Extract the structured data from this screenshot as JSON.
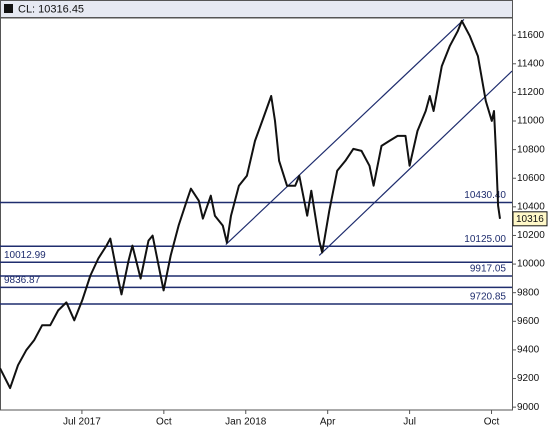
{
  "chart_data": {
    "type": "line",
    "title": "CL: 10316.45",
    "x": [
      3.0,
      3.37,
      3.66,
      3.96,
      4.25,
      4.54,
      4.84,
      5.13,
      5.43,
      5.72,
      6.01,
      6.31,
      6.6,
      6.9,
      7.04,
      7.34,
      7.45,
      7.71,
      7.85,
      8.15,
      8.44,
      8.59,
      8.88,
      8.99,
      9.25,
      9.54,
      9.84,
      9.99,
      10.28,
      10.43,
      10.72,
      10.87,
      11.16,
      11.31,
      11.46,
      11.75,
      12.04,
      12.34,
      12.63,
      12.93,
      13.07,
      13.22,
      13.51,
      13.81,
      13.96,
      14.25,
      14.4,
      14.69,
      14.8,
      15.06,
      15.35,
      15.65,
      15.94,
      16.24,
      16.53,
      16.68,
      16.97,
      17.26,
      17.56,
      17.85,
      18.0,
      18.29,
      18.59,
      18.74,
      18.88,
      19.18,
      19.47,
      19.76,
      19.91,
      20.21,
      20.5,
      20.79,
      21.01,
      21.09,
      21.16,
      21.24,
      21.31
    ],
    "series": [
      {
        "color": "#111111",
        "values": [
          9272,
          9133,
          9293,
          9397,
          9467,
          9572,
          9572,
          9676,
          9732,
          9607,
          9746,
          9920,
          10039,
          10129,
          10178,
          9885,
          9788,
          10025,
          10129,
          9899,
          10164,
          10199,
          9920,
          9816,
          10060,
          10269,
          10443,
          10527,
          10443,
          10318,
          10478,
          10338,
          10269,
          10150,
          10338,
          10548,
          10617,
          10861,
          11015,
          11175,
          11001,
          10722,
          10548,
          10548,
          10617,
          10338,
          10513,
          10164,
          10081,
          10373,
          10652,
          10722,
          10805,
          10791,
          10687,
          10548,
          10826,
          10861,
          10896,
          10896,
          10687,
          10931,
          11070,
          11175,
          11070,
          11384,
          11523,
          11628,
          11700,
          11593,
          11454,
          11140,
          11001,
          11070,
          10791,
          10408,
          10316.45
        ]
      }
    ],
    "last_value_label": "10316",
    "levels": [
      {
        "value": 10430.4,
        "label": "10430.40"
      },
      {
        "value": 10125,
        "label": "10125.00"
      },
      {
        "value": 10012.99,
        "label": "10012.99"
      },
      {
        "value": 9917.05,
        "label": "9917.05"
      },
      {
        "value": 9836.87,
        "label": "9836.87"
      },
      {
        "value": 9720.85,
        "label": "9720.85"
      }
    ],
    "level_color": "#1f2d6e",
    "trendlines": [
      {
        "x": [
          11.27,
          19.99
        ],
        "y": [
          10136,
          11710
        ]
      },
      {
        "x": [
          14.69,
          21.75
        ],
        "y": [
          10060,
          11349
        ]
      }
    ],
    "xlim": [
      3,
      21.75
    ],
    "ylim": [
      8980,
      11720
    ],
    "xticks": [
      {
        "value": 6,
        "label": "Jul 2017"
      },
      {
        "value": 9,
        "label": "Oct"
      },
      {
        "value": 12,
        "label": "Jan 2018"
      },
      {
        "value": 15,
        "label": "Apr"
      },
      {
        "value": 18,
        "label": "Jul"
      },
      {
        "value": 21,
        "label": "Oct"
      }
    ],
    "yticks": [
      9000,
      9200,
      9400,
      9600,
      9800,
      10000,
      10200,
      10400,
      10600,
      10800,
      11000,
      11200,
      11400,
      11600
    ]
  }
}
